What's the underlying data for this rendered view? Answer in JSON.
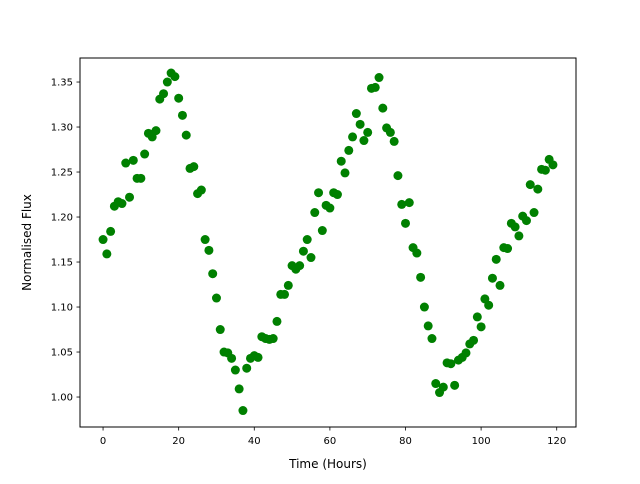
{
  "chart_data": {
    "type": "scatter",
    "title": "",
    "xlabel": "Time (Hours)",
    "ylabel": "Normalised Flux",
    "xlim": [
      -6.1,
      125.1
    ],
    "ylim": [
      0.9667,
      1.3767
    ],
    "xticks": [
      0,
      20,
      40,
      60,
      80,
      100,
      120
    ],
    "xtick_labels": [
      "0",
      "20",
      "40",
      "60",
      "80",
      "100",
      "120"
    ],
    "yticks": [
      1.0,
      1.05,
      1.1,
      1.15,
      1.2,
      1.25,
      1.3,
      1.35
    ],
    "ytick_labels": [
      "1.00",
      "1.05",
      "1.10",
      "1.15",
      "1.20",
      "1.25",
      "1.30",
      "1.35"
    ],
    "grid": false,
    "marker_color": "#008000",
    "series": [
      {
        "x": [
          0,
          1,
          2,
          3,
          4,
          5,
          6,
          7,
          8,
          9,
          10,
          11,
          12,
          13,
          14,
          15,
          16,
          17,
          18,
          19,
          20,
          21,
          22,
          23,
          24,
          25,
          26,
          27,
          28,
          29,
          30,
          31,
          32,
          33,
          34,
          35,
          36,
          37,
          38,
          39,
          40,
          41,
          42,
          43,
          44,
          45,
          46,
          47,
          48,
          49,
          50,
          51,
          52,
          53,
          54,
          55,
          56,
          57,
          58,
          59,
          60,
          61,
          62,
          63,
          64,
          65,
          66,
          67,
          68,
          69,
          70,
          71,
          72,
          73,
          74,
          75,
          76,
          77,
          78,
          79,
          80,
          81,
          82,
          83,
          84,
          85,
          86,
          87,
          88,
          89,
          90,
          91,
          92,
          93,
          94,
          95,
          96,
          97,
          98,
          99,
          100,
          101,
          102,
          103,
          104,
          105,
          106,
          107,
          108,
          109,
          110,
          111,
          112,
          113,
          114,
          115,
          116,
          117,
          118,
          119
        ],
        "y": [
          1.175,
          1.159,
          1.184,
          1.212,
          1.217,
          1.215,
          1.26,
          1.222,
          1.263,
          1.243,
          1.243,
          1.27,
          1.293,
          1.289,
          1.296,
          1.331,
          1.337,
          1.35,
          1.36,
          1.356,
          1.332,
          1.313,
          1.291,
          1.254,
          1.256,
          1.226,
          1.23,
          1.175,
          1.163,
          1.137,
          1.11,
          1.075,
          1.05,
          1.049,
          1.043,
          1.03,
          1.009,
          0.985,
          1.032,
          1.043,
          1.046,
          1.044,
          1.067,
          1.065,
          1.064,
          1.065,
          1.084,
          1.114,
          1.114,
          1.124,
          1.146,
          1.142,
          1.146,
          1.162,
          1.175,
          1.155,
          1.205,
          1.227,
          1.185,
          1.213,
          1.21,
          1.227,
          1.225,
          1.262,
          1.249,
          1.274,
          1.289,
          1.315,
          1.303,
          1.285,
          1.294,
          1.343,
          1.344,
          1.355,
          1.321,
          1.299,
          1.294,
          1.284,
          1.246,
          1.214,
          1.193,
          1.216,
          1.166,
          1.16,
          1.133,
          1.1,
          1.079,
          1.065,
          1.015,
          1.005,
          1.011,
          1.038,
          1.037,
          1.013,
          1.041,
          1.044,
          1.049,
          1.059,
          1.063,
          1.089,
          1.078,
          1.109,
          1.102,
          1.132,
          1.153,
          1.124,
          1.166,
          1.165,
          1.193,
          1.189,
          1.179,
          1.201,
          1.196,
          1.236,
          1.205,
          1.231,
          1.253,
          1.252,
          1.264,
          1.258
        ]
      }
    ]
  }
}
